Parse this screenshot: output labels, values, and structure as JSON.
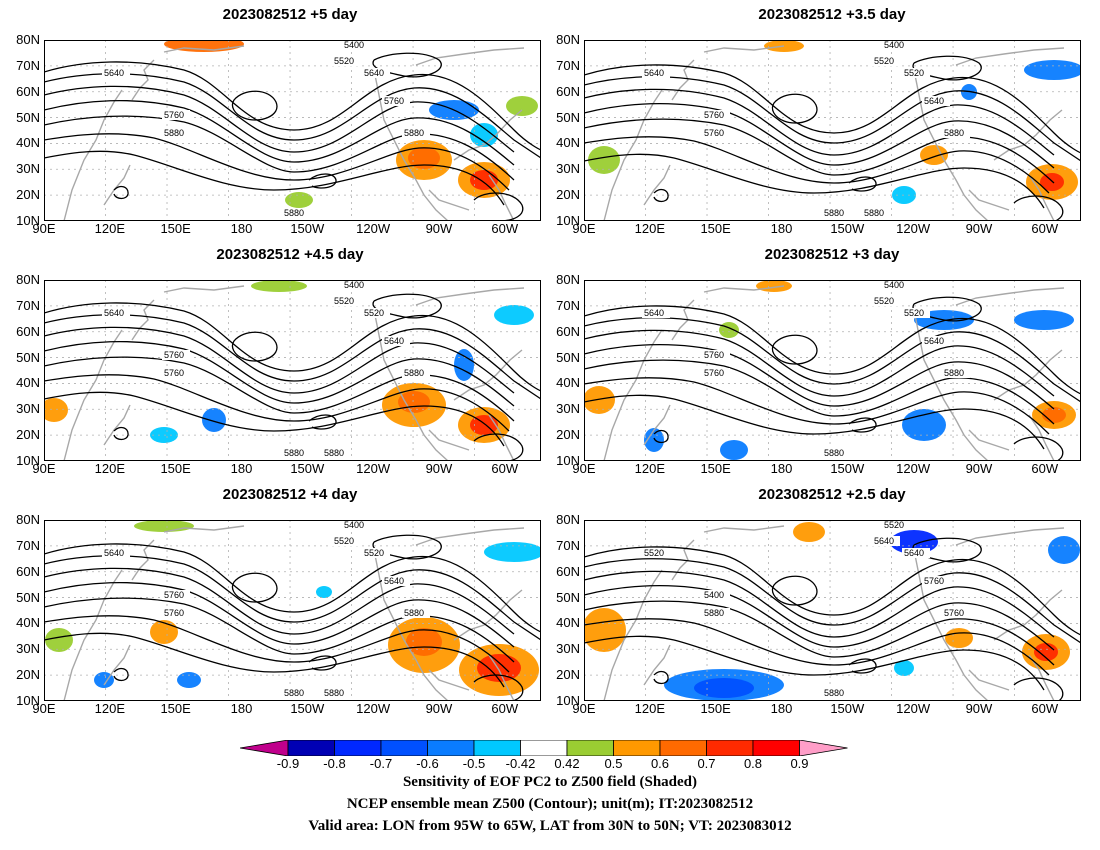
{
  "panels": [
    {
      "title": "2023082512 +5 day",
      "contour_labels": [
        "5400",
        "5520",
        "5640",
        "5640",
        "5760",
        "5760",
        "5880",
        "5880",
        "5880"
      ]
    },
    {
      "title": "2023082512 +3.5 day",
      "contour_labels": [
        "5400",
        "5520",
        "5640",
        "5520",
        "5640",
        "5760",
        "5760",
        "5880",
        "5880",
        "5880"
      ]
    },
    {
      "title": "2023082512 +4.5 day",
      "contour_labels": [
        "5400",
        "5520",
        "5640",
        "5520",
        "5640",
        "5760",
        "5760",
        "5880",
        "5880",
        "5880"
      ]
    },
    {
      "title": "2023082512 +3 day",
      "contour_labels": [
        "5400",
        "5520",
        "5640",
        "5520",
        "5640",
        "5760",
        "5760",
        "5880",
        "5880"
      ]
    },
    {
      "title": "2023082512 +4 day",
      "contour_labels": [
        "5400",
        "5520",
        "5640",
        "5520",
        "5640",
        "5760",
        "5760",
        "5880",
        "5880",
        "5880"
      ]
    },
    {
      "title": "2023082512 +2.5 day",
      "contour_labels": [
        "5520",
        "5640",
        "5520",
        "5640",
        "5760",
        "5400",
        "5880",
        "5760",
        "5880"
      ]
    }
  ],
  "y_labels": [
    "80N",
    "70N",
    "60N",
    "50N",
    "40N",
    "30N",
    "20N",
    "10N"
  ],
  "x_labels": [
    "90E",
    "120E",
    "150E",
    "180",
    "150W",
    "120W",
    "90W",
    "60W"
  ],
  "colorbar": {
    "labels": [
      "-0.9",
      "-0.8",
      "-0.7",
      "-0.6",
      "-0.5",
      "-0.42",
      "0.42",
      "0.5",
      "0.6",
      "0.7",
      "0.8",
      "0.9"
    ],
    "colors": [
      "#c0008c",
      "#0000b4",
      "#0028ff",
      "#0050ff",
      "#0a7cff",
      "#00c8ff",
      "#ffffff",
      "#9acd32",
      "#ff9900",
      "#ff6a00",
      "#ff2a00",
      "#ff0000",
      "#ff9ec8"
    ]
  },
  "caption": {
    "line1": "Sensitivity of EOF PC2 to Z500 field (Shaded)",
    "line2": "NCEP ensemble mean Z500 (Contour); unit(m); IT:2023082512",
    "line3": "Valid area: LON from 95W to 65W, LAT from 30N to 50N; VT: 2023083012"
  },
  "colors": {
    "contour": "#000000",
    "coast": "#a8a8a8",
    "grid": "#b0b0b0"
  }
}
